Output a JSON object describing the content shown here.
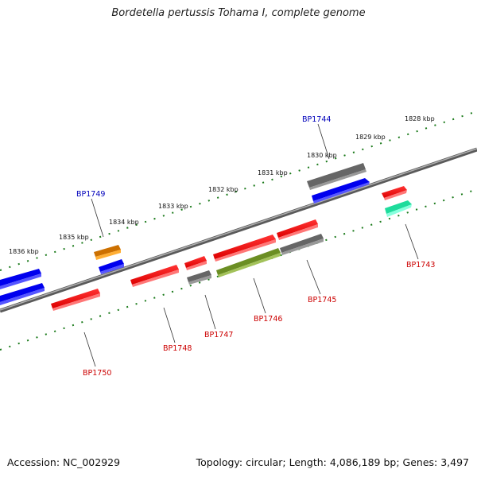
{
  "title": "Bordetella pertussis Tohama I, complete genome",
  "footer": {
    "accession": "Accession: NC_002929",
    "summary": "Topology: circular; Length: 4,086,189 bp; Genes: 3,497"
  },
  "colors": {
    "backbone": "#777777",
    "tick": "#1a7a1a",
    "label_plus": "#0000bb",
    "label_minus": "#cc0000"
  },
  "kbp_labels": [
    "1828 kbp",
    "1829 kbp",
    "1830 kbp",
    "1831 kbp",
    "1832 kbp",
    "1833 kbp",
    "1834 kbp",
    "1835 kbp",
    "1836 kbp"
  ],
  "gene_labels": [
    "BP1743",
    "BP1744",
    "BP1745",
    "BP1746",
    "BP1747",
    "BP1748",
    "BP1749",
    "BP1750"
  ]
}
